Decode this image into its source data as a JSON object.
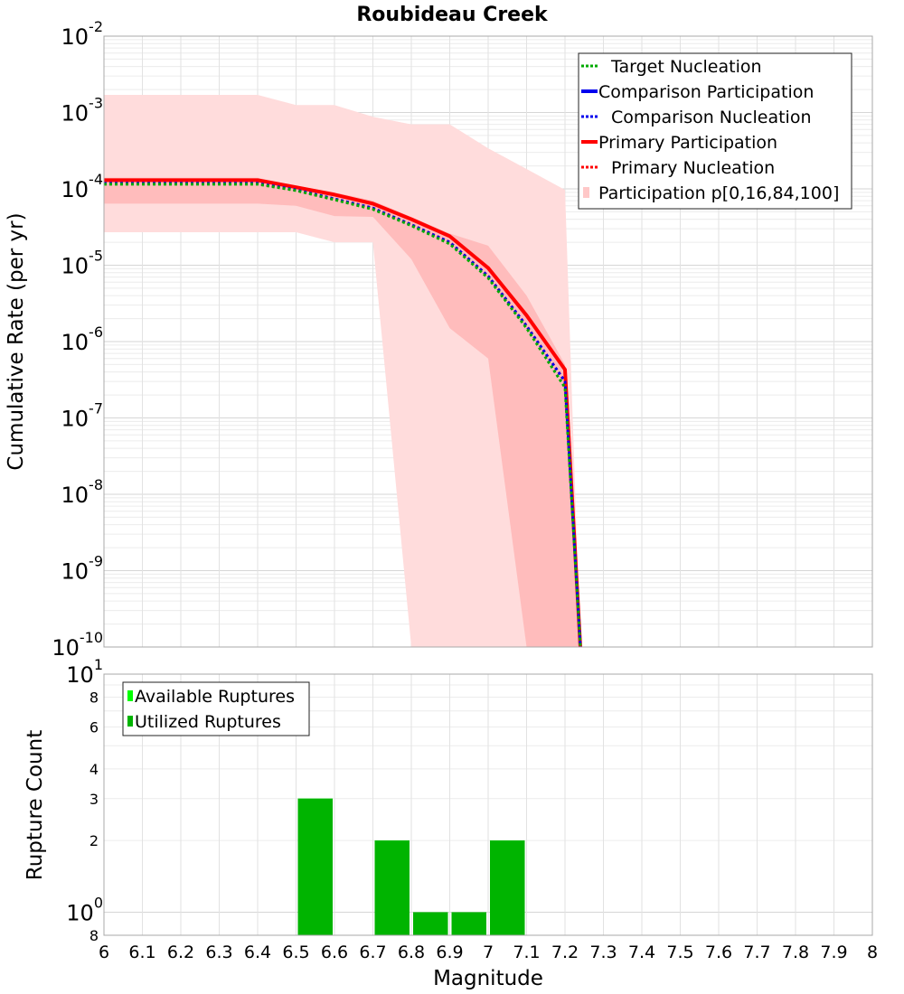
{
  "chart_data": [
    {
      "type": "line",
      "title": "Roubideau Creek",
      "xlabel": "",
      "ylabel": "Cumulative Rate (per yr)",
      "xlim": [
        6,
        8
      ],
      "ylim": [
        1e-10,
        0.01
      ],
      "yscale": "log",
      "grid": true,
      "legend_position": "top-right",
      "y_ticks": [
        {
          "base": "10",
          "exp": "-2",
          "value": 0.01
        },
        {
          "base": "10",
          "exp": "-3",
          "value": 0.001
        },
        {
          "base": "10",
          "exp": "-4",
          "value": 0.0001
        },
        {
          "base": "10",
          "exp": "-5",
          "value": 1e-05
        },
        {
          "base": "10",
          "exp": "-6",
          "value": 1e-06
        },
        {
          "base": "10",
          "exp": "-7",
          "value": 1e-07
        },
        {
          "base": "10",
          "exp": "-8",
          "value": 1e-08
        },
        {
          "base": "10",
          "exp": "-9",
          "value": 1e-09
        },
        {
          "base": "10",
          "exp": "-10",
          "value": 1e-10
        }
      ],
      "legend": [
        {
          "label": "Target Nucleation",
          "color": "#00aa00",
          "style": "dotted"
        },
        {
          "label": "Comparison Participation",
          "color": "#0000ee",
          "style": "solid"
        },
        {
          "label": "Comparison Nucleation",
          "color": "#0000ee",
          "style": "dotted"
        },
        {
          "label": "Primary Participation",
          "color": "#ff0000",
          "style": "solid"
        },
        {
          "label": "Primary Nucleation",
          "color": "#ff0000",
          "style": "dotted"
        },
        {
          "label": "Participation p[0,16,84,100]",
          "color": "#ffc8c8",
          "style": "fill"
        }
      ],
      "bands": [
        {
          "name": "p0-p100",
          "color": "#ffdcdc",
          "x": [
            6.0,
            6.4,
            6.5,
            6.6,
            6.7,
            6.8,
            6.9,
            7.0,
            7.1,
            7.2,
            7.24
          ],
          "upper": [
            0.0017,
            0.0017,
            0.00125,
            0.00125,
            0.00088,
            0.0007,
            0.0007,
            0.00034,
            0.000182,
            9.7e-05,
            1e-10
          ],
          "lower": [
            2.7e-05,
            2.7e-05,
            2.7e-05,
            2e-05,
            2e-05,
            1e-10,
            1e-10,
            1e-10,
            1e-10,
            1e-10,
            1e-10
          ]
        },
        {
          "name": "p16-p84",
          "color": "#ffbcbc",
          "x": [
            6.0,
            6.4,
            6.5,
            6.6,
            6.7,
            6.8,
            6.9,
            7.0,
            7.1,
            7.2,
            7.24
          ],
          "upper": [
            0.00014,
            0.00014,
            0.00011,
            9e-05,
            7e-05,
            4.3e-05,
            2.6e-05,
            1.8e-05,
            4e-06,
            5e-07,
            1e-10
          ],
          "lower": [
            6.4e-05,
            6.4e-05,
            6e-05,
            4.4e-05,
            4.3e-05,
            1.2e-05,
            1.5e-06,
            6e-07,
            1e-10,
            1e-10,
            1e-10
          ]
        }
      ],
      "series": [
        {
          "name": "Primary Participation",
          "color": "#ff0000",
          "style": "solid",
          "x": [
            6.0,
            6.4,
            6.5,
            6.6,
            6.7,
            6.8,
            6.9,
            7.0,
            7.1,
            7.2,
            7.24
          ],
          "values": [
            0.00013,
            0.00013,
            0.000105,
            8.4e-05,
            6.4e-05,
            4e-05,
            2.4e-05,
            9.2e-06,
            2.2e-06,
            4.3e-07,
            1e-10
          ]
        },
        {
          "name": "Primary Nucleation",
          "color": "#ff0000",
          "style": "dotted",
          "x": [
            6.0,
            6.4,
            6.5,
            6.6,
            6.7,
            6.8,
            6.9,
            7.0,
            7.1,
            7.2,
            7.24
          ],
          "values": [
            0.000118,
            0.000118,
            9.7e-05,
            7.4e-05,
            5.6e-05,
            3.4e-05,
            2e-05,
            7.2e-06,
            1.6e-06,
            3e-07,
            1e-10
          ]
        },
        {
          "name": "Comparison Nucleation",
          "color": "#0000ee",
          "style": "dotted",
          "x": [
            6.0,
            6.4,
            6.5,
            6.6,
            6.7,
            6.8,
            6.9,
            7.0,
            7.1,
            7.2,
            7.24
          ],
          "values": [
            0.000118,
            0.000118,
            9.7e-05,
            7.4e-05,
            5.6e-05,
            3.4e-05,
            2e-05,
            7.2e-06,
            1.6e-06,
            3e-07,
            1e-10
          ]
        },
        {
          "name": "Target Nucleation",
          "color": "#00aa00",
          "style": "dotted",
          "x": [
            6.0,
            6.4,
            6.5,
            6.6,
            6.7,
            6.8,
            6.9,
            7.0,
            7.1,
            7.2,
            7.24
          ],
          "values": [
            0.000115,
            0.000115,
            9.5e-05,
            7.2e-05,
            5.4e-05,
            3.3e-05,
            1.9e-05,
            6.8e-06,
            1.5e-06,
            2.5e-07,
            1e-10
          ]
        }
      ]
    },
    {
      "type": "bar",
      "xlabel": "Magnitude",
      "ylabel": "Rupture Count",
      "xlim": [
        6,
        8
      ],
      "ylim": [
        0.8,
        10
      ],
      "yscale": "log",
      "grid": true,
      "legend_position": "top-left",
      "x_ticks": [
        "6",
        "6.1",
        "6.2",
        "6.3",
        "6.4",
        "6.5",
        "6.6",
        "6.7",
        "6.8",
        "6.9",
        "7",
        "7.1",
        "7.2",
        "7.3",
        "7.4",
        "7.5",
        "7.6",
        "7.7",
        "7.8",
        "7.9",
        "8"
      ],
      "y_ticks": [
        {
          "base": "10",
          "exp": "1",
          "value": 10
        },
        {
          "base": "8",
          "exp": "",
          "value": 8
        },
        {
          "base": "6",
          "exp": "",
          "value": 6
        },
        {
          "base": "4",
          "exp": "",
          "value": 4
        },
        {
          "base": "3",
          "exp": "",
          "value": 3
        },
        {
          "base": "2",
          "exp": "",
          "value": 2
        },
        {
          "base": "10",
          "exp": "0",
          "value": 1
        },
        {
          "base": "8",
          "exp": "",
          "value": 0.8
        }
      ],
      "legend": [
        {
          "label": "Available Ruptures",
          "color": "#00ff00"
        },
        {
          "label": "Utilized Ruptures",
          "color": "#00b400"
        }
      ],
      "bars": [
        {
          "x0": 6.5,
          "x1": 6.6,
          "available": 3,
          "utilized": 3
        },
        {
          "x0": 6.7,
          "x1": 6.8,
          "available": 2,
          "utilized": 2
        },
        {
          "x0": 6.8,
          "x1": 6.9,
          "available": 1,
          "utilized": 1
        },
        {
          "x0": 6.9,
          "x1": 7.0,
          "available": 1,
          "utilized": 1
        },
        {
          "x0": 7.0,
          "x1": 7.1,
          "available": 2,
          "utilized": 2
        }
      ]
    }
  ]
}
